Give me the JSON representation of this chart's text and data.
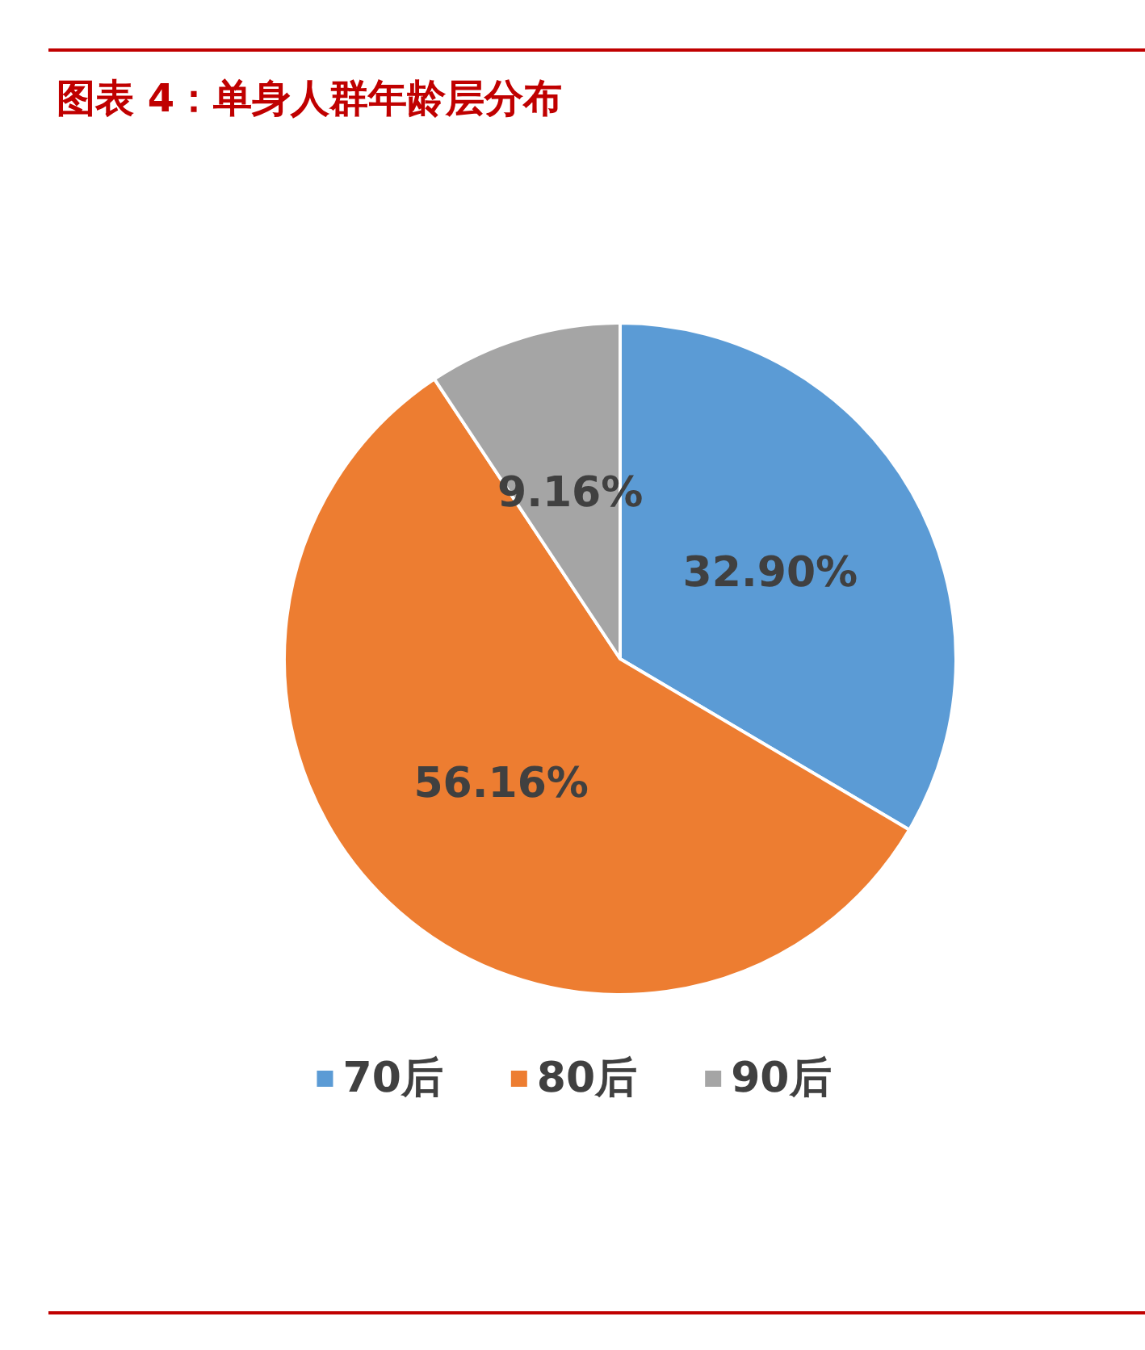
{
  "chart_data": {
    "type": "pie",
    "title": "图表 4：单身人群年龄层分布",
    "categories": [
      "70后",
      "80后",
      "90后"
    ],
    "values": [
      32.9,
      56.16,
      9.16
    ],
    "value_labels": [
      "32.90%",
      "56.16%",
      "9.16%"
    ],
    "colors": [
      "#5b9bd5",
      "#ed7d31",
      "#a5a5a5"
    ],
    "legend": "bottom"
  }
}
